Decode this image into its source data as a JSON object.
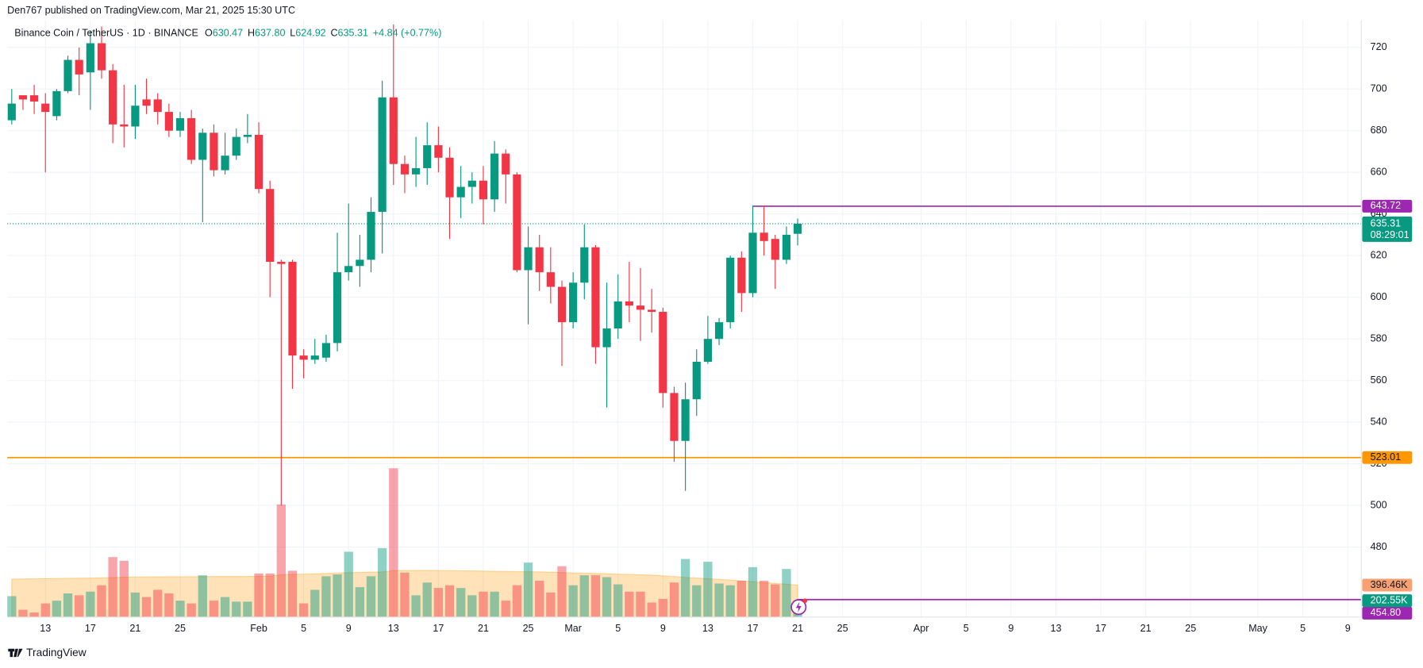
{
  "header": {
    "author_line": "Den767 published on TradingView.com, Mar 21, 2025 15:30 UTC",
    "symbol": "Binance Coin / TetherUS · 1D · BINANCE",
    "ohlc": [
      {
        "key": "O",
        "value": 630.47
      },
      {
        "key": "H",
        "value": 637.8,
        "label": "637.80"
      },
      {
        "key": "L",
        "value": 624.92
      },
      {
        "key": "C",
        "value": 635.31
      }
    ],
    "change": "+4.84 (+0.77%)"
  },
  "chart_data": {
    "type": "candlestick",
    "up_color": "#089981",
    "down_color": "#f23645",
    "open": [
      685,
      697,
      697,
      693,
      687,
      699,
      714,
      708,
      722,
      709,
      683,
      682,
      695,
      695,
      689,
      680,
      686,
      666,
      679,
      661,
      668,
      677,
      678,
      652,
      617,
      617,
      572,
      570,
      571,
      578,
      612,
      615,
      618,
      641,
      696,
      664,
      659,
      662,
      673,
      667,
      648,
      653,
      656,
      647,
      669,
      659,
      613,
      624,
      612,
      605,
      588,
      607,
      624,
      576,
      585,
      598,
      596,
      594,
      593,
      554,
      531,
      551,
      569,
      580,
      588,
      619,
      602,
      631,
      628,
      618,
      630.47
    ],
    "high": [
      700,
      697,
      702,
      698,
      700,
      716,
      720,
      728,
      730,
      712,
      702,
      702,
      705,
      698,
      693,
      689,
      690,
      681,
      683,
      679,
      681,
      688,
      684,
      656,
      618,
      618,
      575,
      580,
      582,
      631,
      645,
      630,
      648,
      704,
      731,
      668,
      677,
      684,
      682,
      672,
      663,
      660,
      663,
      675,
      671,
      660,
      634,
      630,
      624,
      608,
      612,
      635,
      625,
      607,
      611,
      617,
      614,
      604,
      595,
      557,
      559,
      575,
      591,
      590,
      620,
      622,
      644,
      644,
      630,
      634,
      637.8
    ],
    "low": [
      683,
      690,
      688,
      660,
      685,
      698,
      697,
      690,
      705,
      674,
      672,
      676,
      688,
      683,
      677,
      677,
      664,
      636,
      658,
      659,
      666,
      674,
      650,
      600,
      500,
      556,
      561,
      568,
      569,
      574,
      608,
      605,
      612,
      621,
      654,
      650,
      653,
      654,
      660,
      628,
      638,
      645,
      635,
      641,
      645,
      612,
      587,
      603,
      597,
      567,
      585,
      599,
      568,
      547,
      580,
      588,
      579,
      583,
      547,
      521,
      507,
      543,
      568,
      577,
      585,
      593,
      600,
      620,
      604,
      616,
      624.92
    ],
    "close": [
      693,
      695,
      694,
      689,
      699,
      714,
      707,
      722,
      709,
      683,
      682,
      692,
      692,
      689,
      680,
      686,
      666,
      679,
      661,
      668,
      677,
      678,
      652,
      617,
      616,
      572,
      570,
      572,
      578,
      612,
      615,
      618,
      641,
      696,
      664,
      659,
      662,
      673,
      667,
      648,
      653,
      656,
      647,
      669,
      659,
      613,
      624,
      612,
      605,
      588,
      607,
      624,
      576,
      585,
      598,
      596,
      594,
      593,
      554,
      531,
      551,
      569,
      580,
      588,
      619,
      602,
      631,
      627,
      618,
      630,
      635.31
    ],
    "volume": [
      259,
      90,
      56,
      169,
      203,
      293,
      270,
      315,
      394,
      743,
      698,
      304,
      248,
      338,
      293,
      203,
      169,
      518,
      203,
      248,
      191,
      191,
      540,
      540,
      1395,
      574,
      169,
      338,
      506,
      529,
      810,
      371,
      506,
      855,
      1845,
      551,
      270,
      428,
      360,
      394,
      360,
      270,
      315,
      315,
      203,
      394,
      675,
      450,
      304,
      630,
      394,
      518,
      518,
      495,
      405,
      315,
      315,
      180,
      225,
      428,
      720,
      394,
      686,
      416,
      394,
      450,
      619,
      450,
      405,
      596,
      202.55
    ],
    "volume_label": "202.55K",
    "volume_ma": [
      470,
      472,
      474,
      476,
      478,
      480,
      482,
      484,
      486,
      490,
      494,
      496,
      498,
      499,
      500,
      500,
      500,
      502,
      502,
      502,
      502,
      503,
      505,
      508,
      525,
      530,
      532,
      535,
      540,
      545,
      550,
      553,
      556,
      560,
      575,
      578,
      578,
      577,
      576,
      575,
      574,
      572,
      570,
      568,
      566,
      564,
      562,
      560,
      556,
      552,
      548,
      544,
      540,
      536,
      532,
      528,
      524,
      520,
      512,
      502,
      492,
      484,
      476,
      468,
      458,
      448,
      438,
      428,
      418,
      407,
      396.46
    ],
    "volume_ma_label": "396.46K",
    "volume_ma_color": "#ff9800",
    "volume_ylim": [
      0,
      7402
    ],
    "countdown": "08:29:01",
    "price_lines": [
      {
        "value": 643.72,
        "color": "#9c27b0",
        "from": 66
      },
      {
        "value": 523.01,
        "color": "#ff9800"
      },
      {
        "value": 454.8,
        "label": "454.80",
        "color": "#9c27b0",
        "from": 70
      }
    ],
    "ylim": [
      446.4,
      733.1
    ],
    "yticks": [
      480,
      500,
      520,
      540,
      560,
      580,
      600,
      620,
      640,
      660,
      680,
      700,
      720
    ],
    "xlim": [
      -0.4,
      120.2
    ],
    "xticks": [
      {
        "value": 3,
        "label": "13"
      },
      {
        "value": 7,
        "label": "17"
      },
      {
        "value": 11,
        "label": "21"
      },
      {
        "value": 15,
        "label": "25"
      },
      {
        "value": 22,
        "label": "Feb"
      },
      {
        "value": 26,
        "label": "5"
      },
      {
        "value": 30,
        "label": "9"
      },
      {
        "value": 34,
        "label": "13"
      },
      {
        "value": 38,
        "label": "17"
      },
      {
        "value": 42,
        "label": "21"
      },
      {
        "value": 46,
        "label": "25"
      },
      {
        "value": 50,
        "label": "Mar"
      },
      {
        "value": 54,
        "label": "5"
      },
      {
        "value": 58,
        "label": "9"
      },
      {
        "value": 62,
        "label": "13"
      },
      {
        "value": 66,
        "label": "17"
      },
      {
        "value": 70,
        "label": "21"
      },
      {
        "value": 74,
        "label": "25"
      },
      {
        "value": 81,
        "label": "Apr"
      },
      {
        "value": 85,
        "label": "5"
      },
      {
        "value": 89,
        "label": "9"
      },
      {
        "value": 93,
        "label": "13"
      },
      {
        "value": 97,
        "label": "17"
      },
      {
        "value": 101,
        "label": "21"
      },
      {
        "value": 105,
        "label": "25"
      },
      {
        "value": 111,
        "label": "May"
      },
      {
        "value": 115,
        "label": "5"
      },
      {
        "value": 119,
        "label": "9"
      }
    ],
    "grid": true
  },
  "footer": {
    "brand": "TradingView"
  }
}
